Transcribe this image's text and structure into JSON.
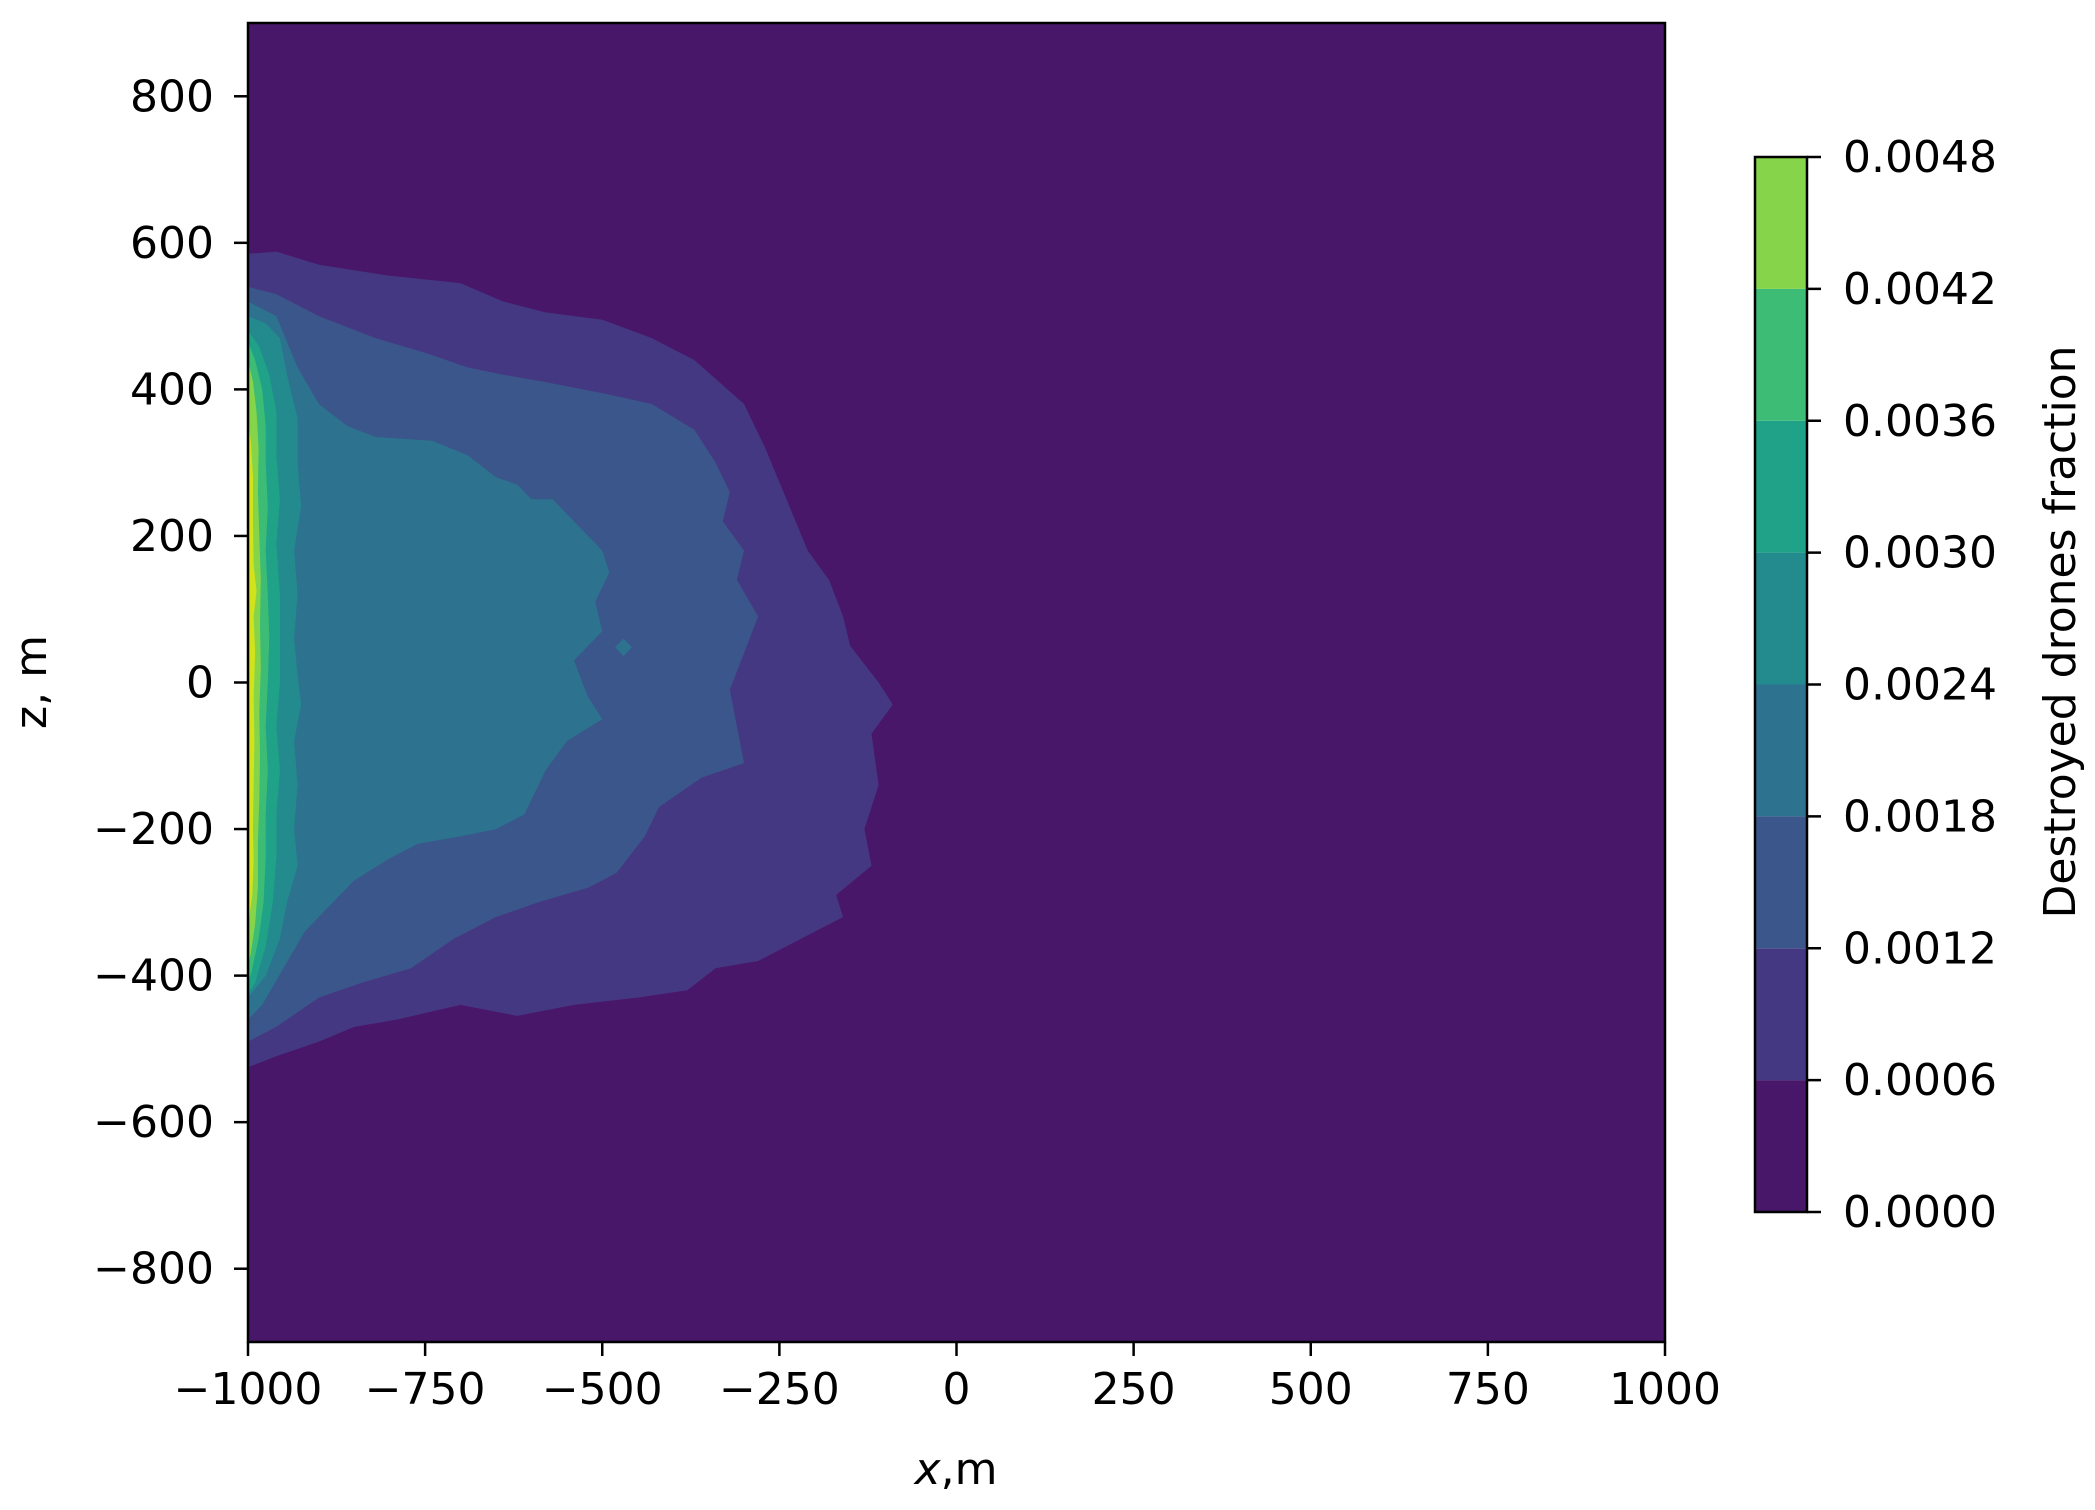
{
  "chart_data": {
    "type": "heatmap",
    "subtype": "filled-contour",
    "title": "",
    "xlabel_var": "x",
    "xlabel_unit": ",m",
    "ylabel": "z, m",
    "xlim": [
      -1000,
      1000
    ],
    "ylim": [
      -900,
      900
    ],
    "x_ticks": [
      -1000,
      -750,
      -500,
      -250,
      0,
      250,
      500,
      750,
      1000
    ],
    "x_tick_labels": [
      "−1000",
      "−750",
      "−500",
      "−250",
      "0",
      "250",
      "500",
      "750",
      "1000"
    ],
    "y_ticks": [
      800,
      600,
      400,
      200,
      0,
      -200,
      -400,
      -600,
      -800
    ],
    "y_tick_labels": [
      "800",
      "600",
      "400",
      "200",
      "0",
      "−200",
      "−400",
      "−600",
      "−800"
    ],
    "grid": false,
    "colorbar": {
      "label": "Destroyed drones fraction",
      "levels": [
        0.0,
        0.0006,
        0.0012,
        0.0018,
        0.0024,
        0.003,
        0.0036,
        0.0042,
        0.0048
      ],
      "tick_labels": [
        "0.0000",
        "0.0006",
        "0.0012",
        "0.0018",
        "0.0024",
        "0.0030",
        "0.0036",
        "0.0042",
        "0.0048"
      ],
      "colors": [
        "#481769",
        "#453882",
        "#3a568b",
        "#2d728e",
        "#238b8d",
        "#1fa287",
        "#3cbc74",
        "#86d449",
        "#d2e21b"
      ]
    },
    "contour_bands": [
      {
        "level_index": 1,
        "points": [
          [
            -1000,
            585
          ],
          [
            -960,
            588
          ],
          [
            -900,
            570
          ],
          [
            -800,
            555
          ],
          [
            -700,
            545
          ],
          [
            -640,
            520
          ],
          [
            -580,
            505
          ],
          [
            -500,
            495
          ],
          [
            -430,
            470
          ],
          [
            -370,
            440
          ],
          [
            -300,
            380
          ],
          [
            -270,
            320
          ],
          [
            -240,
            250
          ],
          [
            -210,
            180
          ],
          [
            -180,
            140
          ],
          [
            -160,
            90
          ],
          [
            -150,
            50
          ],
          [
            -110,
            0
          ],
          [
            -90,
            -30
          ],
          [
            -120,
            -70
          ],
          [
            -110,
            -140
          ],
          [
            -130,
            -200
          ],
          [
            -120,
            -250
          ],
          [
            -170,
            -290
          ],
          [
            -160,
            -320
          ],
          [
            -220,
            -350
          ],
          [
            -280,
            -380
          ],
          [
            -340,
            -390
          ],
          [
            -380,
            -420
          ],
          [
            -450,
            -430
          ],
          [
            -540,
            -440
          ],
          [
            -620,
            -455
          ],
          [
            -700,
            -440
          ],
          [
            -790,
            -460
          ],
          [
            -850,
            -470
          ],
          [
            -900,
            -490
          ],
          [
            -960,
            -510
          ],
          [
            -1000,
            -525
          ]
        ]
      },
      {
        "level_index": 2,
        "points": [
          [
            -1000,
            540
          ],
          [
            -960,
            530
          ],
          [
            -900,
            500
          ],
          [
            -820,
            470
          ],
          [
            -750,
            450
          ],
          [
            -690,
            430
          ],
          [
            -640,
            420
          ],
          [
            -580,
            410
          ],
          [
            -500,
            395
          ],
          [
            -430,
            380
          ],
          [
            -370,
            345
          ],
          [
            -340,
            300
          ],
          [
            -320,
            260
          ],
          [
            -330,
            220
          ],
          [
            -300,
            180
          ],
          [
            -310,
            140
          ],
          [
            -280,
            90
          ],
          [
            -300,
            40
          ],
          [
            -320,
            -10
          ],
          [
            -310,
            -60
          ],
          [
            -300,
            -110
          ],
          [
            -360,
            -130
          ],
          [
            -420,
            -170
          ],
          [
            -440,
            -210
          ],
          [
            -480,
            -260
          ],
          [
            -520,
            -280
          ],
          [
            -590,
            -300
          ],
          [
            -650,
            -320
          ],
          [
            -710,
            -350
          ],
          [
            -770,
            -390
          ],
          [
            -840,
            -410
          ],
          [
            -900,
            -430
          ],
          [
            -960,
            -470
          ],
          [
            -1000,
            -490
          ]
        ]
      },
      {
        "level_index": 3,
        "points": [
          [
            -1000,
            520
          ],
          [
            -960,
            500
          ],
          [
            -930,
            430
          ],
          [
            -900,
            380
          ],
          [
            -860,
            350
          ],
          [
            -820,
            335
          ],
          [
            -740,
            330
          ],
          [
            -690,
            310
          ],
          [
            -650,
            280
          ],
          [
            -620,
            270
          ],
          [
            -600,
            250
          ],
          [
            -570,
            250
          ],
          [
            -550,
            230
          ],
          [
            -520,
            200
          ],
          [
            -500,
            180
          ],
          [
            -490,
            150
          ],
          [
            -510,
            110
          ],
          [
            -500,
            70
          ],
          [
            -540,
            30
          ],
          [
            -520,
            -20
          ],
          [
            -500,
            -50
          ],
          [
            -550,
            -80
          ],
          [
            -580,
            -120
          ],
          [
            -600,
            -160
          ],
          [
            -610,
            -180
          ],
          [
            -650,
            -200
          ],
          [
            -700,
            -210
          ],
          [
            -760,
            -220
          ],
          [
            -800,
            -240
          ],
          [
            -850,
            -270
          ],
          [
            -880,
            -300
          ],
          [
            -920,
            -340
          ],
          [
            -950,
            -390
          ],
          [
            -980,
            -440
          ],
          [
            -1000,
            -460
          ]
        ]
      },
      {
        "level_index": 4,
        "points": [
          [
            -1000,
            500
          ],
          [
            -975,
            490
          ],
          [
            -955,
            470
          ],
          [
            -945,
            420
          ],
          [
            -930,
            360
          ],
          [
            -930,
            300
          ],
          [
            -925,
            240
          ],
          [
            -935,
            180
          ],
          [
            -930,
            120
          ],
          [
            -935,
            60
          ],
          [
            -930,
            10
          ],
          [
            -925,
            -30
          ],
          [
            -935,
            -80
          ],
          [
            -930,
            -140
          ],
          [
            -935,
            -200
          ],
          [
            -930,
            -250
          ],
          [
            -945,
            -300
          ],
          [
            -955,
            -350
          ],
          [
            -975,
            -400
          ],
          [
            -1000,
            -430
          ]
        ]
      },
      {
        "level_index": 5,
        "points": [
          [
            -1000,
            480
          ],
          [
            -985,
            460
          ],
          [
            -970,
            420
          ],
          [
            -960,
            370
          ],
          [
            -960,
            310
          ],
          [
            -955,
            250
          ],
          [
            -960,
            190
          ],
          [
            -955,
            120
          ],
          [
            -955,
            60
          ],
          [
            -955,
            0
          ],
          [
            -960,
            -60
          ],
          [
            -955,
            -120
          ],
          [
            -960,
            -180
          ],
          [
            -960,
            -240
          ],
          [
            -965,
            -300
          ],
          [
            -975,
            -360
          ],
          [
            -990,
            -410
          ],
          [
            -1000,
            -425
          ]
        ]
      },
      {
        "level_index": 6,
        "points": [
          [
            -1000,
            465
          ],
          [
            -990,
            440
          ],
          [
            -980,
            400
          ],
          [
            -975,
            350
          ],
          [
            -975,
            300
          ],
          [
            -972,
            240
          ],
          [
            -975,
            180
          ],
          [
            -972,
            120
          ],
          [
            -970,
            60
          ],
          [
            -972,
            0
          ],
          [
            -975,
            -60
          ],
          [
            -972,
            -120
          ],
          [
            -975,
            -180
          ],
          [
            -975,
            -240
          ],
          [
            -978,
            -300
          ],
          [
            -985,
            -350
          ],
          [
            -995,
            -395
          ],
          [
            -1000,
            -410
          ]
        ]
      },
      {
        "level_index": 7,
        "points": [
          [
            -1000,
            440
          ],
          [
            -993,
            410
          ],
          [
            -988,
            370
          ],
          [
            -985,
            320
          ],
          [
            -986,
            260
          ],
          [
            -984,
            200
          ],
          [
            -982,
            140
          ],
          [
            -983,
            80
          ],
          [
            -982,
            20
          ],
          [
            -984,
            -40
          ],
          [
            -983,
            -100
          ],
          [
            -984,
            -160
          ],
          [
            -986,
            -220
          ],
          [
            -986,
            -280
          ],
          [
            -990,
            -330
          ],
          [
            -996,
            -370
          ],
          [
            -1000,
            -385
          ]
        ]
      },
      {
        "level_index": 8,
        "points": [
          [
            -1000,
            360
          ],
          [
            -996,
            330
          ],
          [
            -993,
            280
          ],
          [
            -993,
            220
          ],
          [
            -992,
            160
          ],
          [
            -988,
            125
          ],
          [
            -992,
            90
          ],
          [
            -990,
            40
          ],
          [
            -992,
            -20
          ],
          [
            -991,
            -80
          ],
          [
            -992,
            -140
          ],
          [
            -993,
            -200
          ],
          [
            -992,
            -240
          ],
          [
            -994,
            -290
          ],
          [
            -998,
            -320
          ],
          [
            -1000,
            -330
          ]
        ]
      },
      {
        "level_index": 3,
        "points": [
          [
            -470,
            60
          ],
          [
            -458,
            48
          ],
          [
            -470,
            36
          ],
          [
            -482,
            48
          ]
        ]
      },
      {
        "level_index": 3,
        "points": [
          [
            -605,
            -12
          ],
          [
            -595,
            -20
          ],
          [
            -605,
            -28
          ],
          [
            -615,
            -20
          ]
        ]
      }
    ]
  }
}
